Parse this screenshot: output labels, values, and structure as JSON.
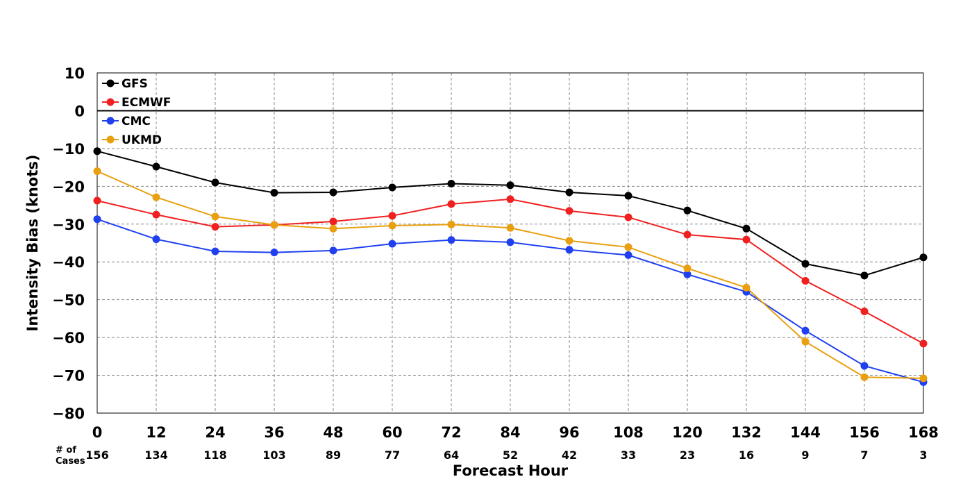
{
  "chart_data": {
    "type": "line",
    "xlabel": "Forecast Hour",
    "ylabel": "Intensity Bias (knots)",
    "x": [
      0,
      12,
      24,
      36,
      48,
      60,
      72,
      84,
      96,
      108,
      120,
      132,
      144,
      156,
      168
    ],
    "xlim": [
      0,
      168
    ],
    "ylim": [
      -80,
      10
    ],
    "yticks": [
      10,
      0,
      -10,
      -20,
      -30,
      -40,
      -50,
      -60,
      -70,
      -80
    ],
    "grid": true,
    "zero_line": true,
    "legend_position": "top-left",
    "cases_label_line1": "# of",
    "cases_label_line2": "Cases",
    "cases": [
      156,
      134,
      118,
      103,
      89,
      77,
      64,
      52,
      42,
      33,
      23,
      16,
      9,
      7,
      3
    ],
    "series": [
      {
        "name": "GFS",
        "color": "#000000",
        "values": [
          -10.7,
          -14.8,
          -19.0,
          -21.7,
          -21.6,
          -20.3,
          -19.3,
          -19.7,
          -21.6,
          -22.5,
          -26.4,
          -31.2,
          -40.5,
          -43.6,
          -38.8
        ]
      },
      {
        "name": "ECMWF",
        "color": "#f02020",
        "values": [
          -23.8,
          -27.5,
          -30.7,
          -30.2,
          -29.3,
          -27.8,
          -24.7,
          -23.4,
          -26.5,
          -28.2,
          -32.8,
          -34.1,
          -45.0,
          -53.1,
          -61.6
        ]
      },
      {
        "name": "CMC",
        "color": "#2040f0",
        "values": [
          -28.7,
          -34.0,
          -37.2,
          -37.5,
          -37.0,
          -35.2,
          -34.2,
          -34.8,
          -36.8,
          -38.2,
          -43.3,
          -47.9,
          -58.2,
          -67.5,
          -71.8
        ]
      },
      {
        "name": "UKMD",
        "color": "#e8a010",
        "values": [
          -16.0,
          -22.9,
          -28.0,
          -30.2,
          -31.2,
          -30.4,
          -30.1,
          -31.0,
          -34.4,
          -36.1,
          -41.7,
          -46.8,
          -61.1,
          -70.5,
          -70.8
        ]
      }
    ]
  }
}
